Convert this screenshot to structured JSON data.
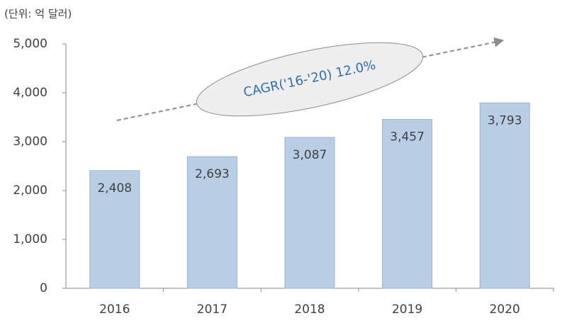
{
  "chart_data": {
    "type": "bar",
    "unit_label": "(단위: 억 달러)",
    "annotation": "CAGR('16-'20) 12.0%",
    "categories": [
      "2016",
      "2017",
      "2018",
      "2019",
      "2020"
    ],
    "values": [
      2408,
      2693,
      3087,
      3457,
      3793
    ],
    "value_labels": [
      "2,408",
      "2,693",
      "3,087",
      "3,457",
      "3,793"
    ],
    "color": "#b9cde5",
    "ylim": [
      0,
      5000
    ],
    "yticks": [
      0,
      {
        "value": 1000,
        "label": "1,000"
      },
      {
        "value": 2000,
        "label": "2,000"
      },
      {
        "value": 3000,
        "label": "3,000"
      },
      {
        "value": 4000,
        "label": "4,000"
      },
      {
        "value": 5000,
        "label": "5,000"
      }
    ],
    "grid": false
  }
}
